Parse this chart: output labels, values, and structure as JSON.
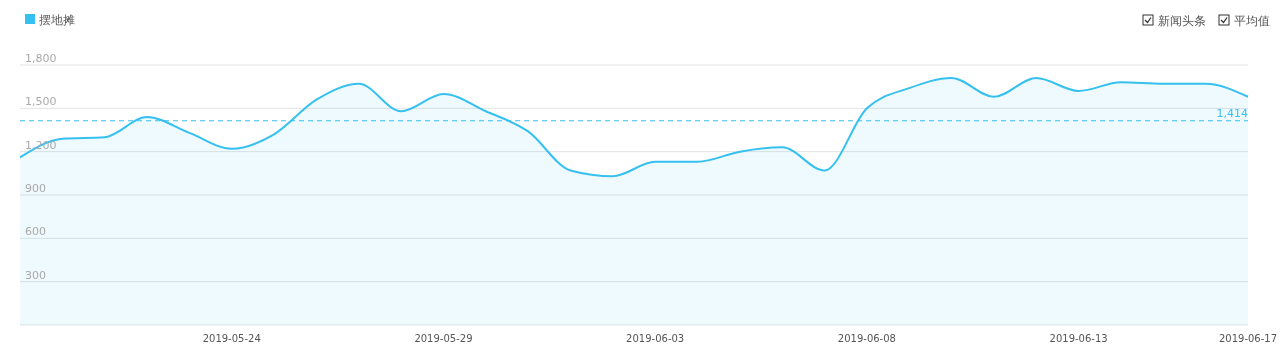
{
  "chart_data": {
    "type": "area",
    "legend": "top left",
    "grid": "y",
    "ylim": [
      0,
      1800
    ],
    "yticks": [
      {
        "value": 300,
        "label": "300"
      },
      {
        "value": 600,
        "label": "600"
      },
      {
        "value": 900,
        "label": "900"
      },
      {
        "value": 1200,
        "label": "1,200"
      },
      {
        "value": 1500,
        "label": "1,500"
      },
      {
        "value": 1800,
        "label": "1,800"
      }
    ],
    "xlim": [
      "2019-05-19",
      "2019-06-17"
    ],
    "xticks": [
      "2019-05-24",
      "2019-05-29",
      "2019-06-03",
      "2019-06-08",
      "2019-06-13",
      "2019-06-17"
    ],
    "x": [
      "2019-05-19",
      "2019-05-20",
      "2019-05-21",
      "2019-05-22",
      "2019-05-23",
      "2019-05-24",
      "2019-05-25",
      "2019-05-26",
      "2019-05-27",
      "2019-05-28",
      "2019-05-29",
      "2019-05-30",
      "2019-05-31",
      "2019-06-01",
      "2019-06-02",
      "2019-06-03",
      "2019-06-04",
      "2019-06-05",
      "2019-06-06",
      "2019-06-07",
      "2019-06-08",
      "2019-06-09",
      "2019-06-10",
      "2019-06-11",
      "2019-06-12",
      "2019-06-13",
      "2019-06-14",
      "2019-06-15",
      "2019-06-16",
      "2019-06-17"
    ],
    "series": [
      {
        "name": "摆地摊",
        "color": "#35c0ef",
        "values": [
          1160,
          1290,
          1300,
          1440,
          1330,
          1220,
          1320,
          1560,
          1670,
          1480,
          1600,
          1480,
          1340,
          1070,
          1030,
          1130,
          1130,
          1200,
          1230,
          1070,
          1500,
          1640,
          1710,
          1580,
          1710,
          1620,
          1680,
          1670,
          1670,
          1580
        ]
      }
    ],
    "ref_lines": [
      {
        "axis": "y",
        "value": 1414,
        "label": "1,414",
        "color": "#35c0ef",
        "line_style": "dashed"
      }
    ],
    "annotations": [
      "新闻头条",
      "平均值"
    ]
  }
}
